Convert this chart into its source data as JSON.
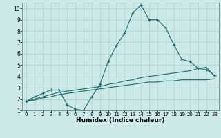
{
  "title": "",
  "xlabel": "Humidex (Indice chaleur)",
  "ylabel": "",
  "background_color": "#cce8e8",
  "grid_color": "#aacece",
  "line_color": "#1a6b6b",
  "xlim": [
    -0.5,
    23.5
  ],
  "ylim": [
    1,
    10.5
  ],
  "xticks": [
    0,
    1,
    2,
    3,
    4,
    5,
    6,
    7,
    8,
    9,
    10,
    11,
    12,
    13,
    14,
    15,
    16,
    17,
    18,
    19,
    20,
    21,
    22,
    23
  ],
  "yticks": [
    1,
    2,
    3,
    4,
    5,
    6,
    7,
    8,
    9,
    10
  ],
  "line1_x": [
    0,
    1,
    2,
    3,
    4,
    5,
    6,
    7,
    8,
    9,
    10,
    11,
    12,
    13,
    14,
    15,
    16,
    17,
    18,
    19,
    20,
    21,
    22,
    23
  ],
  "line1_y": [
    1.8,
    2.2,
    2.5,
    2.8,
    2.8,
    1.5,
    1.1,
    1.0,
    2.2,
    3.3,
    5.3,
    6.7,
    7.8,
    9.6,
    10.3,
    9.0,
    9.0,
    8.3,
    6.8,
    5.5,
    5.3,
    4.7,
    4.6,
    4.1
  ],
  "line2_x": [
    0,
    1,
    2,
    3,
    4,
    5,
    6,
    7,
    8,
    9,
    10,
    11,
    12,
    13,
    14,
    15,
    16,
    17,
    18,
    19,
    20,
    21,
    22,
    23
  ],
  "line2_y": [
    1.8,
    2.0,
    2.2,
    2.4,
    2.6,
    2.7,
    2.8,
    2.9,
    3.0,
    3.1,
    3.3,
    3.4,
    3.6,
    3.7,
    3.9,
    4.0,
    4.1,
    4.2,
    4.3,
    4.4,
    4.5,
    4.7,
    4.8,
    4.0
  ],
  "line3_x": [
    0,
    1,
    2,
    3,
    4,
    5,
    6,
    7,
    8,
    9,
    10,
    11,
    12,
    13,
    14,
    15,
    16,
    17,
    18,
    19,
    20,
    21,
    22,
    23
  ],
  "line3_y": [
    1.8,
    1.9,
    2.1,
    2.2,
    2.4,
    2.5,
    2.6,
    2.7,
    2.8,
    2.9,
    3.0,
    3.1,
    3.2,
    3.3,
    3.4,
    3.5,
    3.5,
    3.6,
    3.6,
    3.7,
    3.7,
    3.7,
    3.7,
    3.8
  ]
}
